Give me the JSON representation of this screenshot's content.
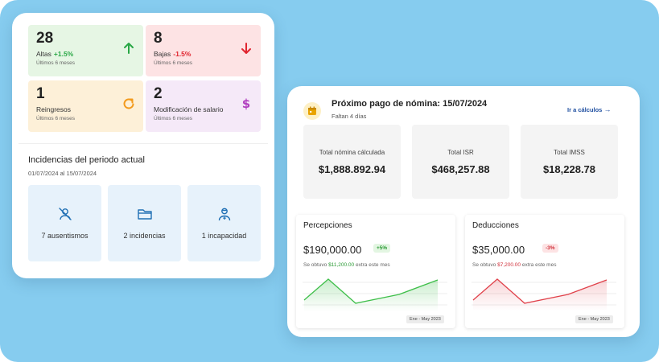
{
  "stats": [
    {
      "value": "28",
      "label": "Altas",
      "change": "+1.5%",
      "period": "Últimos 6 meses",
      "bg": "#e6f6e4",
      "accent": "#28a745",
      "icon": "arrow-up-icon"
    },
    {
      "value": "8",
      "label": "Bajas",
      "change": "-1.5%",
      "period": "Últimos 6 meses",
      "bg": "#fde3e4",
      "accent": "#e0242e",
      "icon": "arrow-down-icon"
    },
    {
      "value": "1",
      "label": "Reingresos",
      "change": "",
      "period": "Últimos 6 meses",
      "bg": "#fdf0d8",
      "accent": "#f39a1c",
      "icon": "refresh-icon"
    },
    {
      "value": "2",
      "label": "Modificación de salario",
      "change": "",
      "period": "Últimos 6 meses",
      "bg": "#f5e9f8",
      "accent": "#b13fbf",
      "icon": "dollar-icon"
    }
  ],
  "incidencias": {
    "title": "Incidencias del periodo actual",
    "period": "01/07/2024 al 15/07/2024",
    "tiles": [
      {
        "label": "7 ausentismos",
        "icon": "user-off-icon"
      },
      {
        "label": "2 incidencias",
        "icon": "folder-icon"
      },
      {
        "label": "1 incapacidad",
        "icon": "health-worker-icon"
      }
    ]
  },
  "payment": {
    "title": "Próximo pago de nómina: 15/07/2024",
    "subtitle": "Faltan 4 días",
    "link": "Ir a cálculos",
    "icon_color": "#e9a400",
    "totals": [
      {
        "label": "Total nómina cálculada",
        "value": "$1,888.892.94"
      },
      {
        "label": "Total ISR",
        "value": "$468,257.88"
      },
      {
        "label": "Total IMSS",
        "value": "$18,228.78"
      }
    ]
  },
  "percepciones": {
    "title": "Percepciones",
    "value": "$190,000.00",
    "badge": "+5%",
    "note_prefix": "Se obtuvo",
    "note_amount": "$11,200.00",
    "note_suffix": "extra este mes",
    "period": "Ene - May 2023",
    "color": "#3fbf4a"
  },
  "deducciones": {
    "title": "Deducciones",
    "value": "$35,000.00",
    "badge": "-3%",
    "note_prefix": "Se obtuvo",
    "note_amount": "$7,200.00",
    "note_suffix": "extra este mes",
    "period": "Ene - May 2023",
    "color": "#e0414a"
  }
}
